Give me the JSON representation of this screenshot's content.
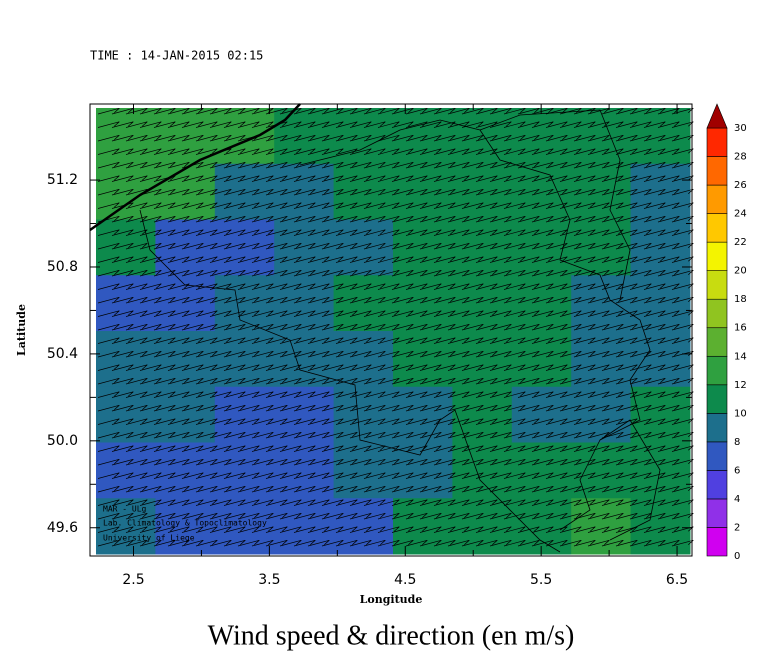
{
  "chart_data": {
    "type": "heatmap",
    "time_label": "TIME : 14-JAN-2015 02:15",
    "title": "Wind speed & direction (en m/s)",
    "xlabel": "Longitude",
    "ylabel": "Latitude",
    "xlim": [
      2.18,
      6.61
    ],
    "ylim": [
      49.47,
      51.55
    ],
    "xticks": [
      2.5,
      3.5,
      4.5,
      5.5,
      6.5
    ],
    "yticks": [
      49.6,
      {
        "value": 50,
        "label": "50.0"
      },
      50.4,
      50.8,
      51.2
    ],
    "z": [
      [
        13,
        13,
        12,
        11,
        10,
        10,
        10,
        10,
        10,
        10
      ],
      [
        12,
        12,
        9,
        9,
        10,
        10,
        11,
        10,
        10,
        9
      ],
      [
        11,
        7,
        7,
        8,
        9,
        10,
        10,
        11,
        10,
        9
      ],
      [
        7,
        7,
        8,
        9,
        10,
        11,
        11,
        10,
        9,
        8
      ],
      [
        8,
        8,
        8,
        9,
        9,
        10,
        11,
        10,
        9,
        9
      ],
      [
        8,
        8,
        7,
        7,
        8,
        9,
        10,
        9,
        9,
        10
      ],
      [
        7,
        7,
        7,
        7,
        8,
        9,
        10,
        10,
        11,
        11
      ],
      [
        8,
        7,
        7,
        7,
        7,
        10,
        11,
        11,
        12,
        11
      ]
    ],
    "wind_direction_deg": 255,
    "colorbar_ticks": [
      0,
      2,
      4,
      6,
      8,
      10,
      12,
      14,
      16,
      18,
      20,
      22,
      24,
      26,
      28,
      30
    ],
    "colorbar_colors": [
      "#d000f0",
      "#9030e8",
      "#5040e0",
      "#3058c0",
      "#1d6f8c",
      "#0d8a4c",
      "#2fa040",
      "#5cb030",
      "#90c420",
      "#c8dc10",
      "#f4f400",
      "#ffc800",
      "#ff9a00",
      "#ff6800",
      "#ff2800"
    ],
    "colorbar_over_color": "#a00000",
    "credits": [
      "MAR - ULg",
      "Lab. Climatology & Topoclimatology",
      "University of Liege"
    ]
  }
}
